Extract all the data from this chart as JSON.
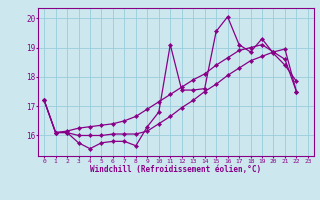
{
  "xlabel": "Windchill (Refroidissement éolien,°C)",
  "bg_color": "#cce8ee",
  "line_color": "#880088",
  "grid_color": "#99ccdd",
  "xlim": [
    -0.5,
    23.5
  ],
  "ylim": [
    15.3,
    20.35
  ],
  "xticks": [
    0,
    1,
    2,
    3,
    4,
    5,
    6,
    7,
    8,
    9,
    10,
    11,
    12,
    13,
    14,
    15,
    16,
    17,
    18,
    19,
    20,
    21,
    22,
    23
  ],
  "yticks": [
    16,
    17,
    18,
    19,
    20
  ],
  "line1_x": [
    0,
    1,
    2,
    3,
    4,
    5,
    6,
    7,
    8,
    9,
    10,
    11,
    12,
    13,
    14,
    15,
    16,
    17,
    18,
    19,
    20,
    21,
    22
  ],
  "line1_y": [
    17.2,
    16.1,
    16.1,
    15.75,
    15.55,
    15.75,
    15.8,
    15.8,
    15.65,
    16.3,
    16.8,
    19.1,
    17.55,
    17.55,
    17.6,
    19.55,
    20.05,
    19.1,
    18.85,
    19.3,
    18.8,
    18.4,
    17.85
  ],
  "line2_x": [
    0,
    1,
    2,
    3,
    4,
    5,
    6,
    7,
    8,
    9,
    10,
    11,
    12,
    13,
    14,
    15,
    16,
    17,
    18,
    19,
    20,
    21,
    22
  ],
  "line2_y": [
    17.2,
    16.1,
    16.15,
    16.25,
    16.3,
    16.35,
    16.4,
    16.5,
    16.65,
    16.9,
    17.15,
    17.4,
    17.65,
    17.9,
    18.1,
    18.4,
    18.65,
    18.9,
    19.0,
    19.1,
    18.85,
    18.6,
    17.5
  ],
  "line3_x": [
    0,
    1,
    2,
    3,
    4,
    5,
    6,
    7,
    8,
    9,
    10,
    11,
    12,
    13,
    14,
    15,
    16,
    17,
    18,
    19,
    20,
    21,
    22
  ],
  "line3_y": [
    17.2,
    16.1,
    16.1,
    16.0,
    16.0,
    16.0,
    16.05,
    16.05,
    16.05,
    16.15,
    16.4,
    16.65,
    16.95,
    17.2,
    17.5,
    17.75,
    18.05,
    18.3,
    18.55,
    18.7,
    18.85,
    18.95,
    17.5
  ]
}
